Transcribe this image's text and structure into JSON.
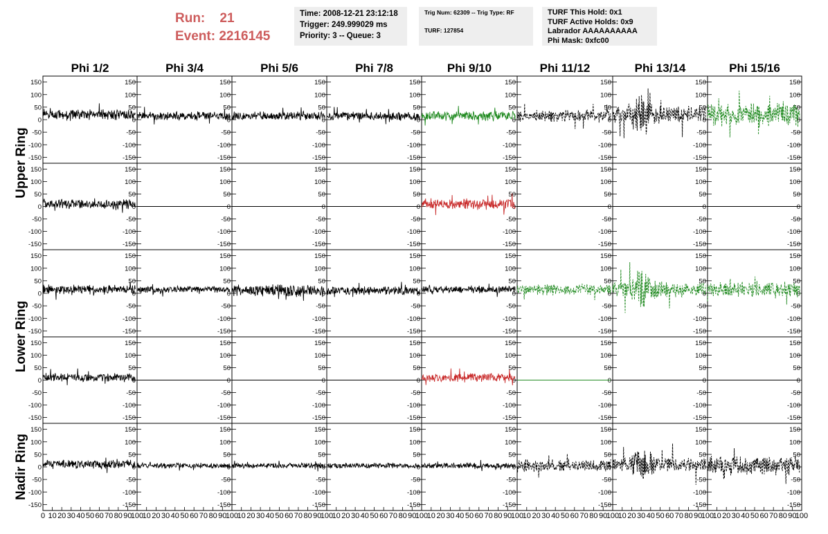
{
  "header": {
    "run_label": "Run:",
    "run_value": "21",
    "event_label": "Event:",
    "event_value": "2216145",
    "time_box": [
      "Time: 2008-12-21 23:12:18",
      "Trigger: 249.999029 ms",
      "Priority: 3 -- Queue: 3"
    ],
    "trig_box": [
      "Trig Num: 62309 -- Trig Type: RF",
      "",
      "TURF: 127854"
    ],
    "turf_box": [
      "TURF This Hold: 0x1",
      "TURF Active Holds: 0x9",
      "Labrador AAAAAAAAAA",
      "Phi Mask: 0xfc00"
    ]
  },
  "chart_data": {
    "type": "line",
    "columns": [
      "Phi 1/2",
      "Phi 3/4",
      "Phi 5/6",
      "Phi 7/8",
      "Phi 9/10",
      "Phi 11/12",
      "Phi 13/14",
      "Phi 15/16"
    ],
    "row_labels": [
      "Upper Ring",
      "Lower Ring",
      "Nadir Ring"
    ],
    "ylim": [
      -160,
      160
    ],
    "yticks": [
      -150,
      -100,
      -50,
      0,
      50,
      100,
      150
    ],
    "xlim": [
      0,
      100
    ],
    "xticks": [
      0,
      10,
      20,
      30,
      40,
      50,
      60,
      70,
      80,
      90,
      100
    ],
    "x_range_drawn": [
      0,
      98
    ],
    "colors": {
      "black": "#000000",
      "green": "#228b22",
      "red": "#c82828"
    },
    "panels": [
      {
        "row": 0,
        "col": 0,
        "style": "black-solid",
        "amp": 20,
        "offset": 20
      },
      {
        "row": 0,
        "col": 1,
        "style": "black-solid",
        "amp": 16,
        "offset": 15
      },
      {
        "row": 0,
        "col": 2,
        "style": "black-solid",
        "amp": 16,
        "offset": 15
      },
      {
        "row": 0,
        "col": 3,
        "style": "black-solid",
        "amp": 16,
        "offset": 15
      },
      {
        "row": 0,
        "col": 4,
        "style": "green-solid",
        "amp": 18,
        "offset": 15
      },
      {
        "row": 0,
        "col": 5,
        "style": "black-dashed",
        "amp": 22,
        "offset": 15
      },
      {
        "row": 0,
        "col": 6,
        "style": "black-dashed",
        "amp": 60,
        "offset": 20
      },
      {
        "row": 0,
        "col": 7,
        "style": "green-dashed",
        "amp": 42,
        "offset": 20
      },
      {
        "row": 1,
        "col": 0,
        "style": "black-solid",
        "amp": 18,
        "offset": 10
      },
      {
        "row": 1,
        "col": 1,
        "style": "black-flat",
        "amp": 0,
        "offset": 0
      },
      {
        "row": 1,
        "col": 2,
        "style": "black-flat",
        "amp": 0,
        "offset": 0
      },
      {
        "row": 1,
        "col": 3,
        "style": "black-flat",
        "amp": 0,
        "offset": 0
      },
      {
        "row": 1,
        "col": 4,
        "style": "red-solid",
        "amp": 20,
        "offset": 10
      },
      {
        "row": 1,
        "col": 5,
        "style": "black-flat",
        "amp": 0,
        "offset": 0
      },
      {
        "row": 1,
        "col": 6,
        "style": "black-flat",
        "amp": 0,
        "offset": 0
      },
      {
        "row": 1,
        "col": 7,
        "style": "black-flat",
        "amp": 0,
        "offset": 0
      },
      {
        "row": 2,
        "col": 0,
        "style": "black-solid",
        "amp": 18,
        "offset": 15
      },
      {
        "row": 2,
        "col": 1,
        "style": "black-solid",
        "amp": 12,
        "offset": 15
      },
      {
        "row": 2,
        "col": 2,
        "style": "black-solid",
        "amp": 22,
        "offset": 10
      },
      {
        "row": 2,
        "col": 3,
        "style": "black-solid",
        "amp": 16,
        "offset": 10
      },
      {
        "row": 2,
        "col": 4,
        "style": "black-solid",
        "amp": 14,
        "offset": 15
      },
      {
        "row": 2,
        "col": 5,
        "style": "green-dashed",
        "amp": 20,
        "offset": 15
      },
      {
        "row": 2,
        "col": 6,
        "style": "green-dashed",
        "amp": 55,
        "offset": 15
      },
      {
        "row": 2,
        "col": 7,
        "style": "green-dashed",
        "amp": 30,
        "offset": 15
      },
      {
        "row": 3,
        "col": 0,
        "style": "black-solid",
        "amp": 16,
        "offset": 10
      },
      {
        "row": 3,
        "col": 1,
        "style": "black-flat",
        "amp": 0,
        "offset": 0
      },
      {
        "row": 3,
        "col": 2,
        "style": "black-flat",
        "amp": 0,
        "offset": 0
      },
      {
        "row": 3,
        "col": 3,
        "style": "black-flat",
        "amp": 0,
        "offset": 0
      },
      {
        "row": 3,
        "col": 4,
        "style": "red-solid",
        "amp": 16,
        "offset": 10
      },
      {
        "row": 3,
        "col": 5,
        "style": "green-flat",
        "amp": 0,
        "offset": 0
      },
      {
        "row": 3,
        "col": 6,
        "style": "black-flat",
        "amp": 0,
        "offset": 0
      },
      {
        "row": 3,
        "col": 7,
        "style": "black-flat",
        "amp": 0,
        "offset": 0
      },
      {
        "row": 4,
        "col": 0,
        "style": "black-solid",
        "amp": 16,
        "offset": 10
      },
      {
        "row": 4,
        "col": 1,
        "style": "black-solid",
        "amp": 10,
        "offset": 5
      },
      {
        "row": 4,
        "col": 2,
        "style": "black-solid",
        "amp": 10,
        "offset": 5
      },
      {
        "row": 4,
        "col": 3,
        "style": "black-solid",
        "amp": 10,
        "offset": 5
      },
      {
        "row": 4,
        "col": 4,
        "style": "black-solid",
        "amp": 10,
        "offset": 5
      },
      {
        "row": 4,
        "col": 5,
        "style": "black-dashed",
        "amp": 24,
        "offset": 5
      },
      {
        "row": 4,
        "col": 6,
        "style": "black-dashed",
        "amp": 50,
        "offset": 10
      },
      {
        "row": 4,
        "col": 7,
        "style": "black-dashed",
        "amp": 36,
        "offset": 5
      }
    ]
  }
}
